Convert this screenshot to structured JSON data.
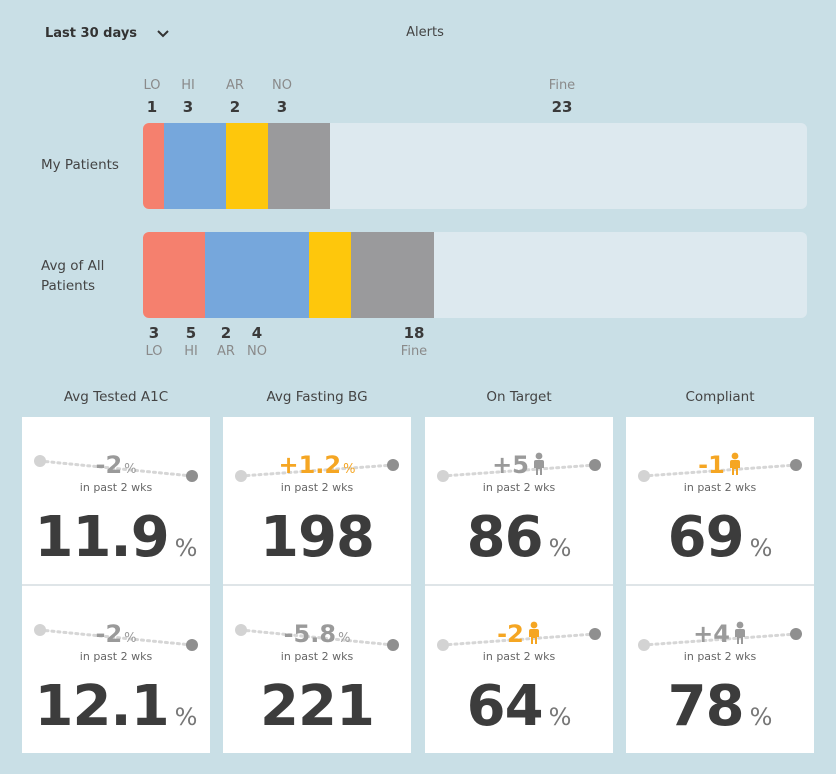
{
  "header": {
    "range_label": "Last 30 days",
    "alerts_title": "Alerts"
  },
  "colors": {
    "lo": "#f5806e",
    "hi": "#76a7dc",
    "ar": "#fec70c",
    "no": "#9a9a9c",
    "fine": "#dde9ef",
    "up_accent": "#f5a623",
    "neutral": "#9a9a9a"
  },
  "alert_rows": [
    {
      "label": "My Patients",
      "categories": [
        {
          "code": "LO",
          "count": "1",
          "value": 1
        },
        {
          "code": "HI",
          "count": "3",
          "value": 3
        },
        {
          "code": "AR",
          "count": "2",
          "value": 2
        },
        {
          "code": "NO",
          "count": "3",
          "value": 3
        }
      ],
      "fine": {
        "code": "Fine",
        "count": "23",
        "value": 23
      }
    },
    {
      "label": "Avg of All Patients",
      "categories": [
        {
          "code": "LO",
          "count": "3",
          "value": 3
        },
        {
          "code": "HI",
          "count": "5",
          "value": 5
        },
        {
          "code": "AR",
          "count": "2",
          "value": 2
        },
        {
          "code": "NO",
          "count": "4",
          "value": 4
        }
      ],
      "fine": {
        "code": "Fine",
        "count": "18",
        "value": 18
      }
    }
  ],
  "metrics": [
    {
      "title": "Avg Tested A1C",
      "cells": [
        {
          "delta": "-2",
          "delta_unit": "%",
          "delta_color": "neutral",
          "person_icon": false,
          "trend": "down",
          "past": "in past 2 wks",
          "value": "11.9",
          "unit": "%"
        },
        {
          "delta": "-2",
          "delta_unit": "%",
          "delta_color": "neutral",
          "person_icon": false,
          "trend": "down",
          "past": "in past 2 wks",
          "value": "12.1",
          "unit": "%"
        }
      ]
    },
    {
      "title": "Avg Fasting BG",
      "cells": [
        {
          "delta": "+1.2",
          "delta_unit": "%",
          "delta_color": "up_accent",
          "person_icon": false,
          "trend": "up",
          "past": "in past 2 wks",
          "value": "198",
          "unit": ""
        },
        {
          "delta": "-5.8",
          "delta_unit": "%",
          "delta_color": "neutral",
          "person_icon": false,
          "trend": "down",
          "past": "in past 2 wks",
          "value": "221",
          "unit": ""
        }
      ]
    },
    {
      "title": "On Target",
      "cells": [
        {
          "delta": "+5",
          "delta_unit": "",
          "delta_color": "neutral",
          "person_icon": true,
          "trend": "up",
          "past": "in past 2 wks",
          "value": "86",
          "unit": "%"
        },
        {
          "delta": "-2",
          "delta_unit": "",
          "delta_color": "up_accent",
          "person_icon": true,
          "trend": "up",
          "past": "in past 2 wks",
          "value": "64",
          "unit": "%"
        }
      ]
    },
    {
      "title": "Compliant",
      "cells": [
        {
          "delta": "-1",
          "delta_unit": "",
          "delta_color": "up_accent",
          "person_icon": true,
          "trend": "up",
          "past": "in past 2 wks",
          "value": "69",
          "unit": "%"
        },
        {
          "delta": "+4",
          "delta_unit": "",
          "delta_color": "neutral",
          "person_icon": true,
          "trend": "up",
          "past": "in past 2 wks",
          "value": "78",
          "unit": "%"
        }
      ]
    }
  ]
}
